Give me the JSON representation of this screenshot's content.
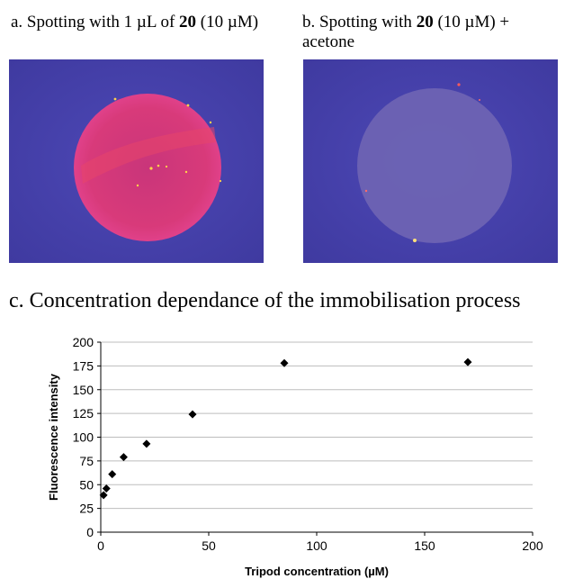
{
  "panel_a": {
    "caption_pre": "a. Spotting with 1 µL of ",
    "caption_bold": "20",
    "caption_post": " (10 µM)"
  },
  "panel_b": {
    "caption_pre": "b. Spotting with ",
    "caption_bold": "20",
    "caption_post": " (10 µM) + acetone"
  },
  "panel_c": {
    "caption": "c. Concentration dependance of  the immobilisation process"
  },
  "colors": {
    "image_background": "#4a45b0",
    "spot_a_fill": "#d83a7a",
    "spot_b_fill": "#6f65b4",
    "marker": "#000000",
    "gridline": "#bdbdbd"
  },
  "chart_data": {
    "type": "scatter",
    "xlabel": "Tripod concentration (µM)",
    "ylabel": "Fluorescence intensity",
    "xlim": [
      0,
      200
    ],
    "ylim": [
      0,
      200
    ],
    "xticks": [
      0,
      50,
      100,
      150,
      200
    ],
    "yticks": [
      0,
      25,
      50,
      75,
      100,
      125,
      150,
      175,
      200
    ],
    "grid": "horizontal",
    "marker": "diamond",
    "points": [
      {
        "x": 1.3,
        "y": 39
      },
      {
        "x": 2.6,
        "y": 46
      },
      {
        "x": 5.3,
        "y": 61
      },
      {
        "x": 10.6,
        "y": 79
      },
      {
        "x": 21.2,
        "y": 93
      },
      {
        "x": 42.5,
        "y": 124
      },
      {
        "x": 85,
        "y": 178
      },
      {
        "x": 170,
        "y": 179
      }
    ]
  }
}
